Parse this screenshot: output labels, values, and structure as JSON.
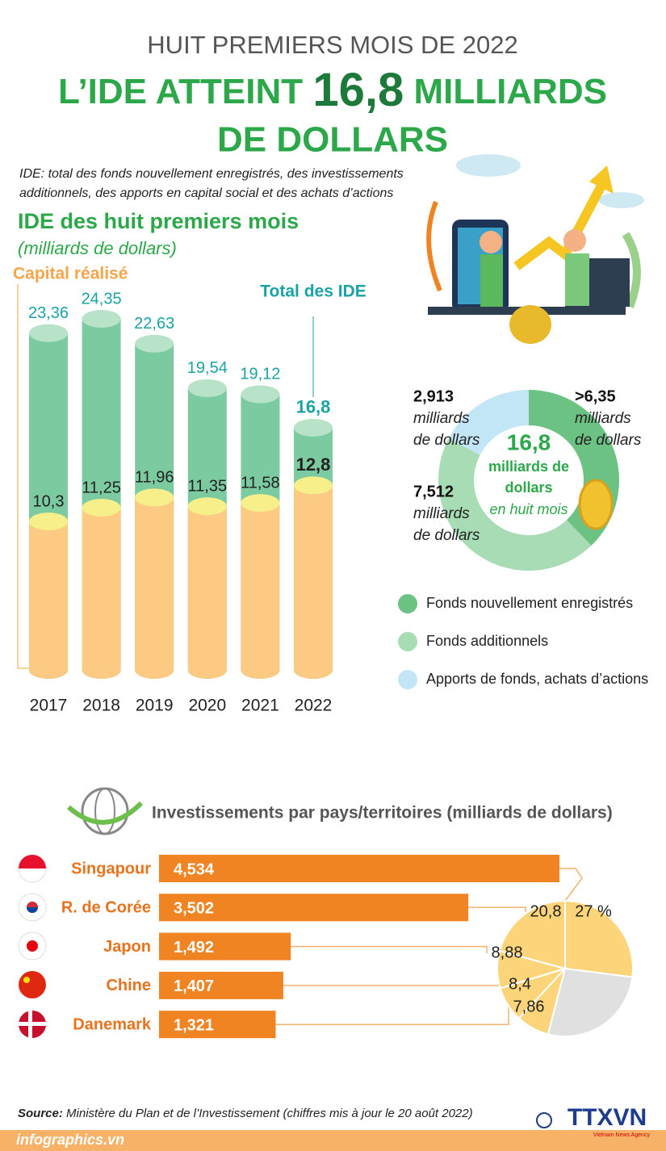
{
  "header": {
    "kicker": "HUIT PREMIERS MOIS DE 2022",
    "title_parts": [
      "L’IDE ATTEINT",
      "16,8",
      "MILLIARDS",
      "DE DOLLARS"
    ],
    "note_lines": [
      "IDE: total des fonds nouvellement enregistrés, des investissements",
      "additionnels, des apports en capital social et des achats d’actions"
    ]
  },
  "chart_data": [
    {
      "type": "cylinder",
      "title": "IDE des huit premiers mois",
      "subtitle": "(milliards de dollars)",
      "categories": [
        "2017",
        "2018",
        "2019",
        "2020",
        "2021",
        "2022"
      ],
      "series": [
        {
          "name": "Capital réalisé",
          "color": "#fcca82",
          "values": [
            10.3,
            11.25,
            11.96,
            11.35,
            11.58,
            12.8
          ],
          "value_labels": [
            "10,3",
            "11,25",
            "11,96",
            "11,35",
            "11,58",
            "12,8"
          ]
        },
        {
          "name": "Total des IDE",
          "color": "#7ccaa0",
          "values": [
            23.36,
            24.35,
            22.63,
            19.54,
            19.12,
            16.8
          ],
          "value_labels": [
            "23,36",
            "24,35",
            "22,63",
            "19,54",
            "19,12",
            "16,8"
          ]
        }
      ]
    },
    {
      "type": "donut",
      "center_label": "16,8",
      "center_lines": [
        "milliards de",
        "dollars"
      ],
      "center_note": "en huit mois",
      "unit_lines": [
        "milliards",
        "de dollars"
      ],
      "categories": [
        "Fonds nouvellement enregistrés",
        "Fonds additionnels",
        "Apports de fonds, achats d’actions"
      ],
      "values": [
        6.35,
        7.512,
        2.913
      ],
      "value_labels": [
        ">6,35",
        "7,512",
        "2,913"
      ],
      "colors": [
        "#6cc283",
        "#a8dcb5",
        "#c3e6f6"
      ]
    },
    {
      "type": "hbar-pie",
      "title": "Investissements par pays/territoires (milliards de dollars)",
      "categories": [
        "Singapour",
        "R. de Corée",
        "Japon",
        "Chine",
        "Danemark"
      ],
      "values": [
        4.534,
        3.502,
        1.492,
        1.407,
        1.321
      ],
      "value_labels": [
        "4,534",
        "3,502",
        "1,492",
        "1,407",
        "1,321"
      ],
      "color": "#f08423",
      "shares": [
        27,
        20.8,
        8.88,
        8.4,
        7.86
      ],
      "share_labels": [
        "27 %",
        "20,8",
        "8,88",
        "8,4",
        "7,86"
      ],
      "share_color": "#fcd57a",
      "rest_color": "#e0e0e0"
    }
  ],
  "footer": {
    "source_label": "Source:",
    "source_text": "Ministère du Plan et de l’Investissement (chiffres mis à jour le 20 août 2022)",
    "site": "infographics.vn",
    "logo": "TTXVN",
    "logo_sub": "Vietnam News Agency"
  }
}
